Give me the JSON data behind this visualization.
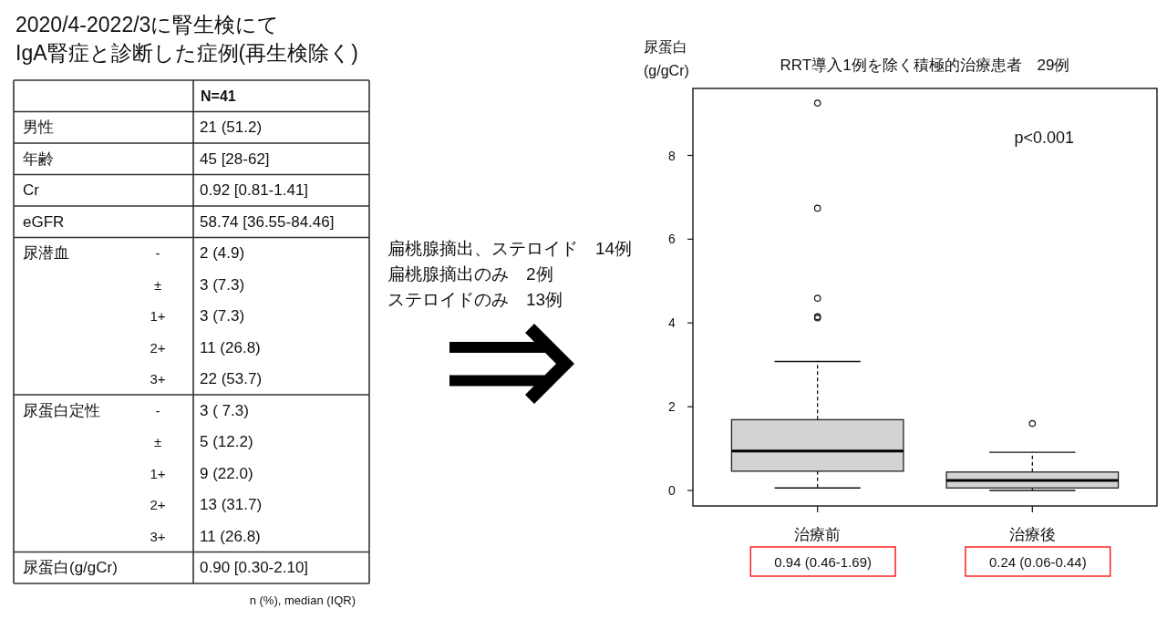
{
  "chart_data": [
    {
      "type": "other",
      "title": "2020/4-2022/3に腎生検にて\nIgA腎症と診断した症例(再生検除く)",
      "categories": [
        "N=41"
      ],
      "y_categories": [
        "男性",
        "年齢",
        "Cr",
        "eGFR",
        "尿潜血",
        null,
        null,
        null,
        null,
        "尿蛋白定性",
        null,
        null,
        null,
        null,
        "尿蛋白(g/gCr)"
      ],
      "y2_categories": [
        null,
        null,
        null,
        null,
        "-",
        "±",
        "1+",
        "2+",
        "3+",
        "-",
        "±",
        "1+",
        "2+",
        "3+",
        null
      ],
      "cell_labels": [
        [
          "21 (51.2)"
        ],
        [
          "45 [28-62]"
        ],
        [
          "0.92 [0.81-1.41]"
        ],
        [
          "58.74 [36.55-84.46]"
        ],
        [
          "2 (4.9)"
        ],
        [
          "3 (7.3)"
        ],
        [
          "3 (7.3)"
        ],
        [
          "11 (26.8)"
        ],
        [
          "22 (53.7)"
        ],
        [
          "3 ( 7.3)"
        ],
        [
          "5 (12.2)"
        ],
        [
          "9 (22.0)"
        ],
        [
          "13 (31.7)"
        ],
        [
          "11 (26.8)"
        ],
        [
          "0.90 [0.30-2.10]"
        ]
      ],
      "annotations": [
        "n (%), median (IQR)"
      ]
    },
    {
      "type": "other",
      "annotations": [
        "扁桃腺摘出、ステロイド　14例",
        "扁桃腺摘出のみ　2例",
        "ステロイドのみ　13例"
      ]
    },
    {
      "type": "box",
      "title": "RRT導入1例を除く積極的治療患者　29例",
      "ylabel": "尿蛋白\n(g/gCr)",
      "categories": [
        "治療前",
        "治療後"
      ],
      "series": [
        {
          "color": "#d3d3d3",
          "boxes": [
            {
              "low": 0.06,
              "q1": 0.46,
              "median": 0.94,
              "q3": 1.69,
              "high": 3.08,
              "outliers": [
                4.12,
                4.15,
                4.59,
                6.74,
                9.25
              ]
            },
            {
              "low": 0.0,
              "q1": 0.06,
              "median": 0.24,
              "q3": 0.44,
              "high": 0.91,
              "outliers": [
                1.6
              ]
            }
          ]
        }
      ],
      "ylim": [
        -0.37,
        9.6
      ],
      "yticks": [
        0,
        2,
        4,
        6,
        8
      ],
      "annotations": [
        "0.94 (0.46-1.69)",
        "0.24 (0.06-0.44)",
        "p<0.001"
      ]
    }
  ]
}
